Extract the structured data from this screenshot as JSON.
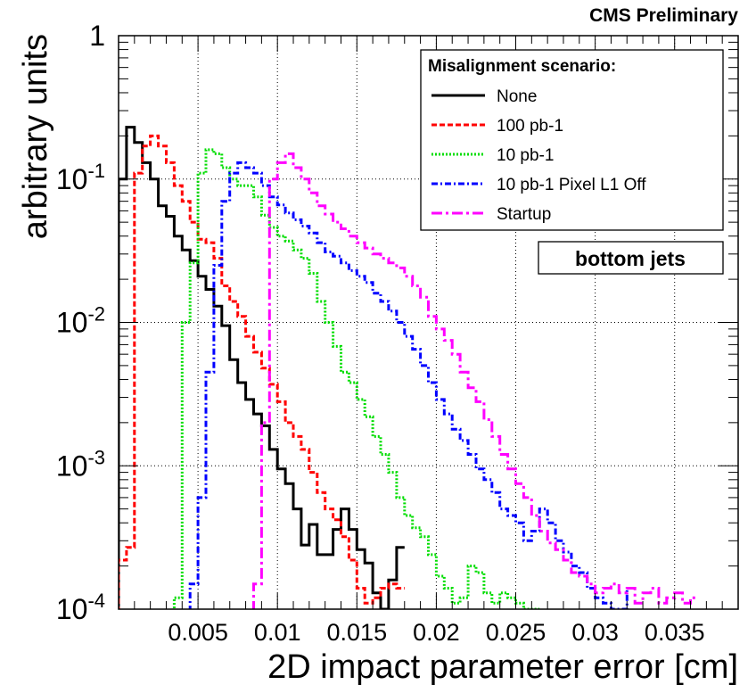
{
  "chart_data": {
    "type": "line",
    "title": "CMS Preliminary",
    "xlabel": "2D impact parameter error [cm]",
    "ylabel": "arbitrary units",
    "xlim": [
      0.0,
      0.039
    ],
    "ylim": [
      0.0001,
      1
    ],
    "yscale": "log",
    "grid": true,
    "bin_width": 0.0005,
    "x_ticks": [
      {
        "value": 0.005,
        "label": "0.005"
      },
      {
        "value": 0.01,
        "label": "0.01"
      },
      {
        "value": 0.015,
        "label": "0.015"
      },
      {
        "value": 0.02,
        "label": "0.02"
      },
      {
        "value": 0.025,
        "label": "0.025"
      },
      {
        "value": 0.03,
        "label": "0.03"
      },
      {
        "value": 0.035,
        "label": "0.035"
      }
    ],
    "y_ticks": [
      {
        "value": 1,
        "base": "1",
        "exp": ""
      },
      {
        "value": 0.1,
        "base": "10",
        "exp": "-1"
      },
      {
        "value": 0.01,
        "base": "10",
        "exp": "-2"
      },
      {
        "value": 0.001,
        "base": "10",
        "exp": "-3"
      },
      {
        "value": 0.0001,
        "base": "10",
        "exp": "-4"
      }
    ],
    "legend": {
      "header": "Misalignment scenario:",
      "placement": "top-right"
    },
    "annotation": "bottom jets",
    "series": [
      {
        "name": "None",
        "color": "#000000",
        "style": "solid",
        "x_start": 0.0,
        "values": [
          0.1,
          0.23,
          0.18,
          0.13,
          0.1,
          0.065,
          0.055,
          0.04,
          0.032,
          0.027,
          0.021,
          0.017,
          0.013,
          0.0095,
          0.0055,
          0.0038,
          0.0029,
          0.0023,
          0.0019,
          0.0013,
          0.00095,
          0.00075,
          0.0005,
          0.00028,
          0.00039,
          0.00024,
          0.00024,
          0.00036,
          0.0005,
          0.00036,
          0.00026,
          0.00021,
          0.00013,
          0.0001,
          0.00016,
          0.00027
        ]
      },
      {
        "name": "100 pb-1",
        "color": "#ff0000",
        "style": "dashed",
        "x_start": 0.0,
        "values": [
          0.00022,
          0.00027,
          0.11,
          0.17,
          0.2,
          0.17,
          0.13,
          0.09,
          0.07,
          0.05,
          0.038,
          0.036,
          0.028,
          0.018,
          0.014,
          0.011,
          0.008,
          0.0062,
          0.0048,
          0.0037,
          0.0028,
          0.002,
          0.0016,
          0.0013,
          0.0009,
          0.00065,
          0.0005,
          0.00042,
          0.00032,
          0.00022,
          0.00014,
          0.00011,
          0.00012,
          0.00014,
          0.00015,
          0.00014
        ]
      },
      {
        "name": "10 pb-1",
        "color": "#00dd00",
        "style": "dotted",
        "x_start": 0.0035,
        "values": [
          0.00012,
          0.01,
          0.026,
          0.11,
          0.16,
          0.15,
          0.12,
          0.1,
          0.09,
          0.09,
          0.075,
          0.056,
          0.046,
          0.04,
          0.037,
          0.032,
          0.028,
          0.022,
          0.014,
          0.01,
          0.0068,
          0.0045,
          0.0038,
          0.0029,
          0.0022,
          0.0016,
          0.0012,
          0.0009,
          0.0006,
          0.00045,
          0.00037,
          0.00032,
          0.00024,
          0.00017,
          0.00014,
          0.00011,
          0.00012,
          0.0002,
          0.00018,
          0.00013,
          0.00011,
          0.00013,
          0.00012,
          0.00011,
          0.0001,
          0.0001
        ]
      },
      {
        "name": "10 pb-1 Pixel L1 Off",
        "color": "#0000ff",
        "style": "dashdot",
        "x_start": 0.0045,
        "values": [
          0.00015,
          0.0006,
          0.0045,
          0.025,
          0.07,
          0.11,
          0.13,
          0.12,
          0.11,
          0.09,
          0.075,
          0.066,
          0.058,
          0.052,
          0.047,
          0.042,
          0.036,
          0.031,
          0.029,
          0.026,
          0.023,
          0.021,
          0.019,
          0.016,
          0.014,
          0.012,
          0.01,
          0.008,
          0.0065,
          0.005,
          0.0038,
          0.0029,
          0.0023,
          0.0018,
          0.0015,
          0.0012,
          0.00095,
          0.0008,
          0.00065,
          0.0005,
          0.00045,
          0.0004,
          0.0003,
          0.00035,
          0.0005,
          0.0004,
          0.0003,
          0.00025,
          0.0002,
          0.00018,
          0.00014,
          0.00012,
          0.00011,
          0.0001,
          0.0001,
          0.00014
        ]
      },
      {
        "name": "Startup",
        "color": "#ff00ff",
        "style": "longdashdot",
        "x_start": 0.0085,
        "values": [
          0.00015,
          0.002,
          0.1,
          0.13,
          0.15,
          0.12,
          0.1,
          0.08,
          0.065,
          0.057,
          0.05,
          0.045,
          0.04,
          0.036,
          0.033,
          0.03,
          0.028,
          0.026,
          0.024,
          0.021,
          0.018,
          0.015,
          0.011,
          0.009,
          0.0075,
          0.006,
          0.0045,
          0.0035,
          0.0028,
          0.0021,
          0.0016,
          0.0012,
          0.00095,
          0.00075,
          0.0006,
          0.00045,
          0.00035,
          0.00029,
          0.00026,
          0.00022,
          0.00018,
          0.00017,
          0.00015,
          0.00013,
          0.00014,
          0.00015,
          0.00013,
          0.00014,
          0.00011,
          0.00013,
          0.00014,
          0.00011,
          0.00012,
          0.00013,
          0.00011,
          0.00012
        ]
      }
    ]
  }
}
